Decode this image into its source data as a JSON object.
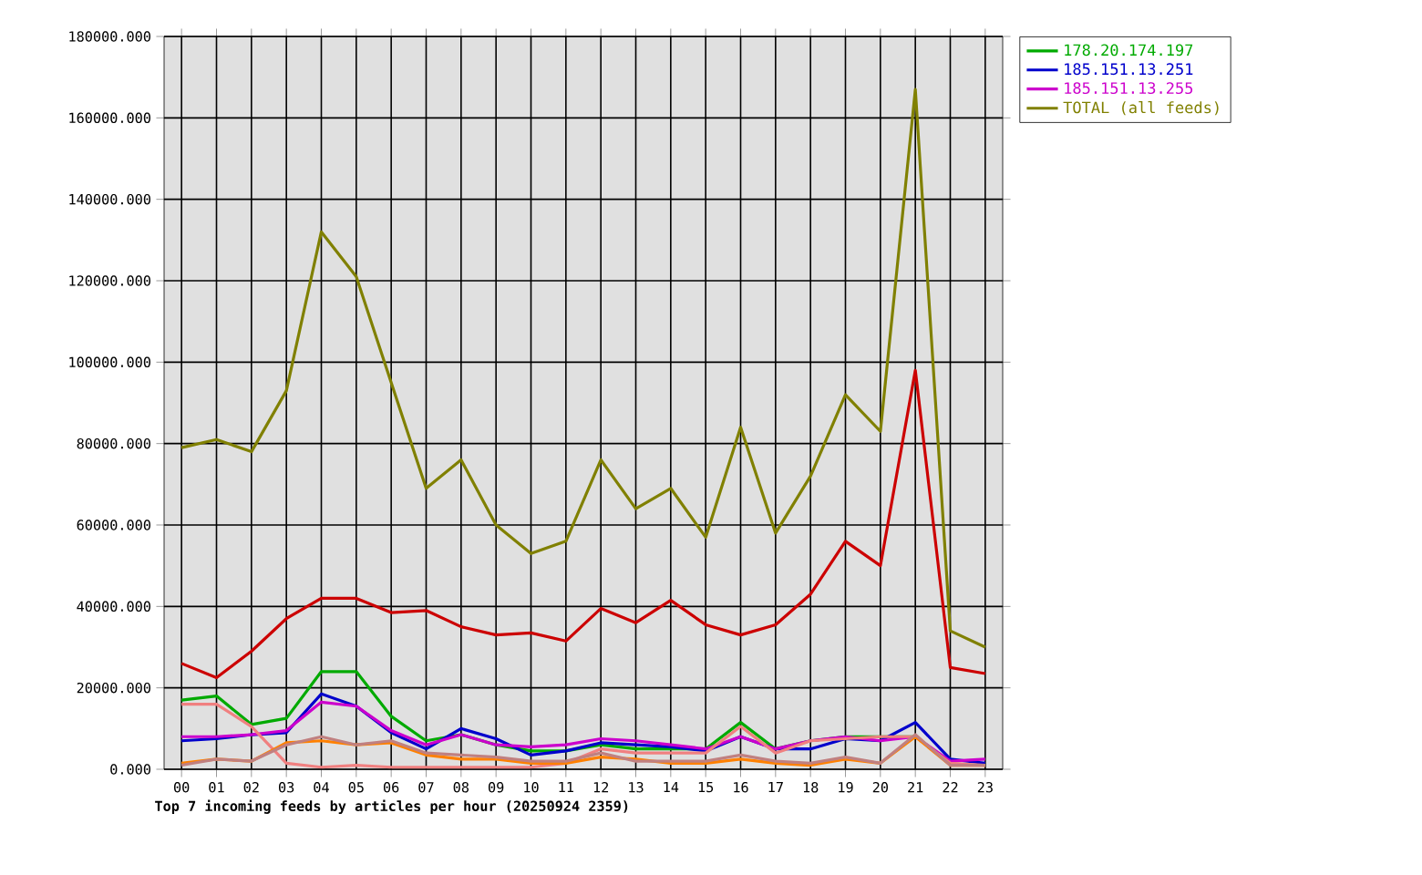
{
  "chart_data": {
    "type": "line",
    "title": "Top 7 incoming feeds by articles per hour (20250924 2359)",
    "categories": [
      "00",
      "01",
      "02",
      "03",
      "04",
      "05",
      "06",
      "07",
      "08",
      "09",
      "10",
      "11",
      "12",
      "13",
      "14",
      "15",
      "16",
      "17",
      "18",
      "19",
      "20",
      "21",
      "22",
      "23"
    ],
    "series": [
      {
        "color": "#cc0000",
        "values": [
          26000,
          22500,
          29000,
          37000,
          42000,
          42000,
          38500,
          39000,
          35000,
          33000,
          33500,
          31500,
          39500,
          36000,
          41500,
          35500,
          33000,
          35500,
          43000,
          56000,
          50000,
          98000,
          25000,
          23500
        ]
      },
      {
        "name": "178.20.174.197",
        "color": "#00aa00",
        "values": [
          17000,
          18000,
          11000,
          12500,
          24000,
          24000,
          13000,
          7000,
          8500,
          6000,
          4500,
          4500,
          6000,
          5000,
          5000,
          5000,
          11500,
          5000,
          7000,
          8000,
          8000,
          8000,
          null,
          null
        ]
      },
      {
        "name": "185.151.13.251",
        "color": "#0000cc",
        "values": [
          7000,
          7500,
          8500,
          9000,
          18500,
          15500,
          9000,
          5000,
          10000,
          7500,
          3500,
          4500,
          6500,
          6000,
          5500,
          4500,
          8000,
          5000,
          5000,
          7500,
          7000,
          11500,
          2500,
          1500
        ]
      },
      {
        "name": "185.151.13.255",
        "color": "#cc00cc",
        "values": [
          8000,
          8000,
          8500,
          9500,
          16500,
          15500,
          9500,
          6000,
          8500,
          6000,
          5500,
          6000,
          7500,
          7000,
          6000,
          5000,
          8000,
          5000,
          7000,
          8000,
          7000,
          8000,
          2000,
          2500
        ]
      },
      {
        "color": "#f08080",
        "values": [
          16000,
          16000,
          10500,
          1500,
          500,
          1000,
          500,
          500,
          500,
          500,
          500,
          1500,
          5000,
          4000,
          4000,
          4000,
          10500,
          4000,
          7000,
          7500,
          8000,
          8000,
          1500,
          1000
        ]
      },
      {
        "color": "#ff8000",
        "values": [
          1500,
          2500,
          2000,
          6500,
          7000,
          6000,
          6500,
          3500,
          2500,
          2500,
          1500,
          1500,
          3000,
          2500,
          1500,
          1500,
          2500,
          1500,
          1000,
          2500,
          1500,
          8000,
          1000,
          1000
        ]
      },
      {
        "color": "#c08080",
        "values": [
          1000,
          2500,
          2000,
          6000,
          8000,
          6000,
          7000,
          4000,
          3500,
          3000,
          2000,
          2000,
          4000,
          2000,
          2000,
          2000,
          3500,
          2000,
          1500,
          3000,
          1500,
          8500,
          1000,
          1000
        ]
      },
      {
        "name": "TOTAL (all feeds)",
        "color": "#808000",
        "values": [
          79000,
          81000,
          78000,
          93000,
          132000,
          121000,
          95000,
          69000,
          76000,
          60000,
          53000,
          56000,
          76000,
          64000,
          69000,
          57000,
          84000,
          58000,
          72000,
          92000,
          83000,
          167000,
          34000,
          30000
        ]
      }
    ],
    "ylim": [
      0,
      180000
    ],
    "yticks": [
      {
        "value": 0,
        "label": "0.000"
      },
      {
        "value": 20000,
        "label": "20000.000"
      },
      {
        "value": 40000,
        "label": "40000.000"
      },
      {
        "value": 60000,
        "label": "60000.000"
      },
      {
        "value": 80000,
        "label": "80000.000"
      },
      {
        "value": 100000,
        "label": "100000.000"
      },
      {
        "value": 120000,
        "label": "120000.000"
      },
      {
        "value": 140000,
        "label": "140000.000"
      },
      {
        "value": 160000,
        "label": "160000.000"
      },
      {
        "value": 180000,
        "label": "180000.000"
      }
    ],
    "grid": true,
    "legend": "top right"
  }
}
